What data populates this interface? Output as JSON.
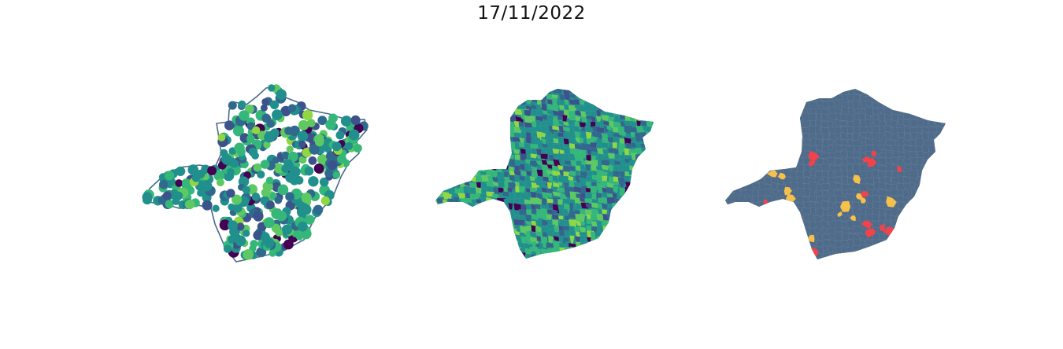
{
  "figure": {
    "title": "17/11/2022"
  },
  "maps": [
    {
      "id": "point-map",
      "kind": "points",
      "outline_color": "#4a6b8a"
    },
    {
      "id": "choropleth-map",
      "kind": "choropleth",
      "palette": [
        "#440154",
        "#3b528b",
        "#31688e",
        "#21908d",
        "#35b779",
        "#5ec962",
        "#90d743"
      ]
    },
    {
      "id": "category-map",
      "kind": "categorical",
      "base_color": "#4f6b8a",
      "highlight_colors": [
        "#f5c14a",
        "#f2424a"
      ]
    }
  ]
}
